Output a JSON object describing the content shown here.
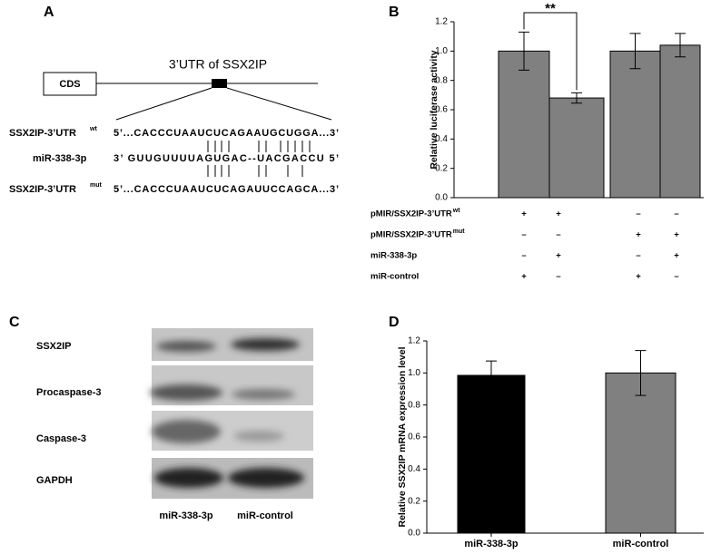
{
  "panel_labels": [
    "A",
    "B",
    "C",
    "D"
  ],
  "panel_a": {
    "cds": "CDS",
    "utr_label": "3’UTR of SSX2IP",
    "rows": [
      {
        "name": "SSX2IP-3’UTR",
        "sup": "wt",
        "sequence": "5’...CACCCUAAUCUCAGAAUGCUGGA...3’"
      },
      {
        "name": "miR-338-3p",
        "sequence": "3’    GUUGUUUUAGUGAC--UACGACCU    5’"
      },
      {
        "name": "SSX2IP-3’UTR",
        "sup": "mut",
        "sequence": "5’...CACCCUAAUCUCAGAUUCCAGCA...3’"
      }
    ]
  },
  "panel_c": {
    "proteins": [
      "SSX2IP",
      "Procaspase-3",
      "Caspase-3",
      "GAPDH"
    ],
    "lanes": [
      "miR-338-3p",
      "miR-control"
    ]
  },
  "chart_data": [
    {
      "type": "bar",
      "ylabel": "Relative luciferase activity",
      "categories": [
        null,
        null,
        null,
        null
      ],
      "values": [
        1.0,
        0.68,
        1.0,
        1.04
      ],
      "errors": [
        0.13,
        0.035,
        0.12,
        0.08
      ],
      "color": "#808080",
      "annotation": "**",
      "ylim": [
        0,
        1.2
      ],
      "yticks": [
        {
          "value": 0,
          "label": "0.0"
        },
        {
          "value": 0.2,
          "label": "0.2"
        },
        {
          "value": 0.4,
          "label": "0.4"
        },
        {
          "value": 0.6,
          "label": "0.6"
        },
        {
          "value": 0.8,
          "label": "0.8"
        },
        {
          "value": 1.0,
          "label": "1.0"
        },
        {
          "value": 1.2,
          "label": "1.2"
        }
      ],
      "conditions": [
        {
          "name": "pMIR/SSX2IP-3’UTR",
          "sup": "wt",
          "values": [
            "+",
            "+",
            "–",
            "–"
          ]
        },
        {
          "name": "pMIR/SSX2IP-3’UTR",
          "sup": "mut",
          "values": [
            "–",
            "–",
            "+",
            "+"
          ]
        },
        {
          "name": "miR-338-3p",
          "values": [
            "–",
            "+",
            "–",
            "+"
          ]
        },
        {
          "name": "miR-control",
          "values": [
            "+",
            "–",
            "+",
            "–"
          ]
        }
      ]
    },
    {
      "type": "bar",
      "ylabel": "Relative SSX2IP mRNA expression level",
      "categories": [
        "miR-338-3p",
        "miR-control"
      ],
      "values": [
        0.985,
        1.0
      ],
      "errors": [
        0.09,
        0.14
      ],
      "colors": [
        "#000000",
        "#808080"
      ],
      "ylim": [
        0,
        1.2
      ],
      "yticks": [
        {
          "value": 0,
          "label": "0.0"
        },
        {
          "value": 0.2,
          "label": "0.2"
        },
        {
          "value": 0.4,
          "label": "0.4"
        },
        {
          "value": 0.6,
          "label": "0.6"
        },
        {
          "value": 0.8,
          "label": "0.8"
        },
        {
          "value": 1.0,
          "label": "1.0"
        },
        {
          "value": 1.2,
          "label": "1.2"
        }
      ]
    }
  ]
}
